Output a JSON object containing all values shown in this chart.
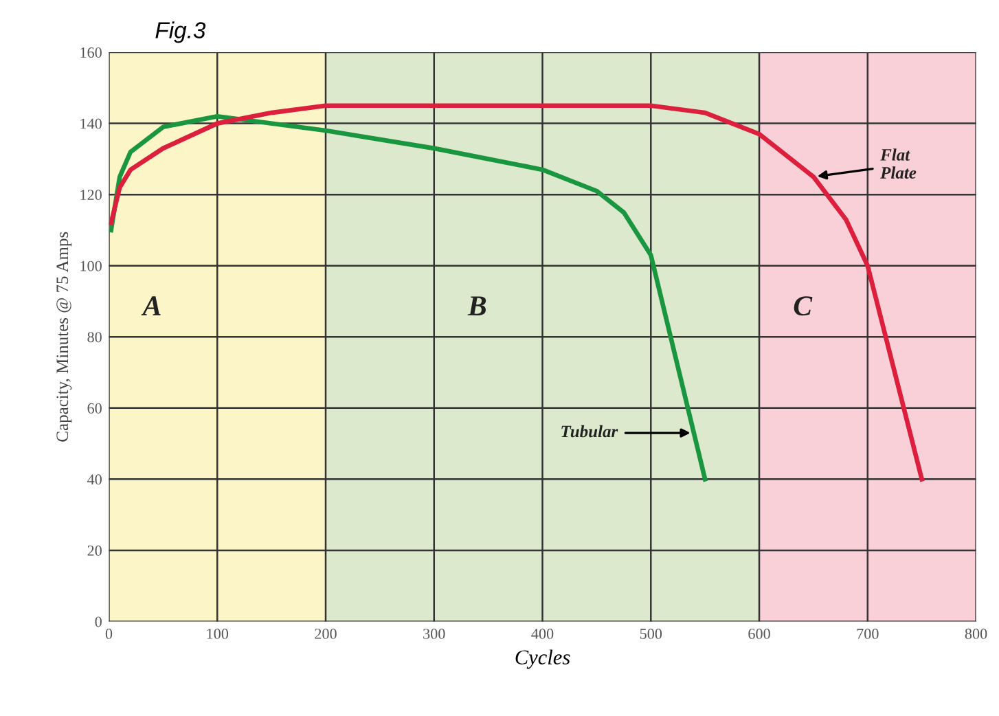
{
  "chart_data": {
    "type": "line",
    "title": "Fig.3",
    "xlabel": "Cycles",
    "ylabel": "Capacity, Minutes @ 75 Amps",
    "xlim": [
      0,
      800
    ],
    "xticks": [
      0,
      100,
      200,
      300,
      400,
      500,
      600,
      700,
      800
    ],
    "ylim": [
      0,
      160
    ],
    "yticks": [
      0,
      20,
      40,
      60,
      80,
      100,
      120,
      140,
      160
    ],
    "grid": true,
    "marker": "none",
    "line_style": "solid",
    "series": [
      {
        "color": "#1a9640",
        "x": [
          2,
          10,
          20,
          50,
          100,
          200,
          300,
          400,
          450,
          475,
          500,
          550
        ],
        "values": [
          110,
          125,
          132,
          139,
          142,
          138,
          133,
          127,
          121,
          115,
          103,
          40
        ]
      },
      {
        "color": "#dc1f3c",
        "x": [
          2,
          10,
          20,
          50,
          100,
          150,
          200,
          500,
          550,
          600,
          650,
          680,
          700,
          750
        ],
        "values": [
          112,
          122,
          127,
          133,
          140,
          143,
          145,
          145,
          143,
          137,
          125,
          113,
          100,
          40
        ]
      }
    ],
    "bands": [
      {
        "axis": "x",
        "from": 0,
        "to": 200,
        "label": "A",
        "color": "#fbf5c8"
      },
      {
        "axis": "x",
        "from": 200,
        "to": 600,
        "label": "B",
        "color": "#dde9cc"
      },
      {
        "axis": "x",
        "from": 600,
        "to": 800,
        "label": "C",
        "color": "#f9d0d8"
      }
    ],
    "annotations": [
      {
        "text": "Flat\nPlate",
        "x": 650,
        "y": 125
      },
      {
        "text": "Tubular",
        "x": 540,
        "y": 53
      }
    ]
  }
}
